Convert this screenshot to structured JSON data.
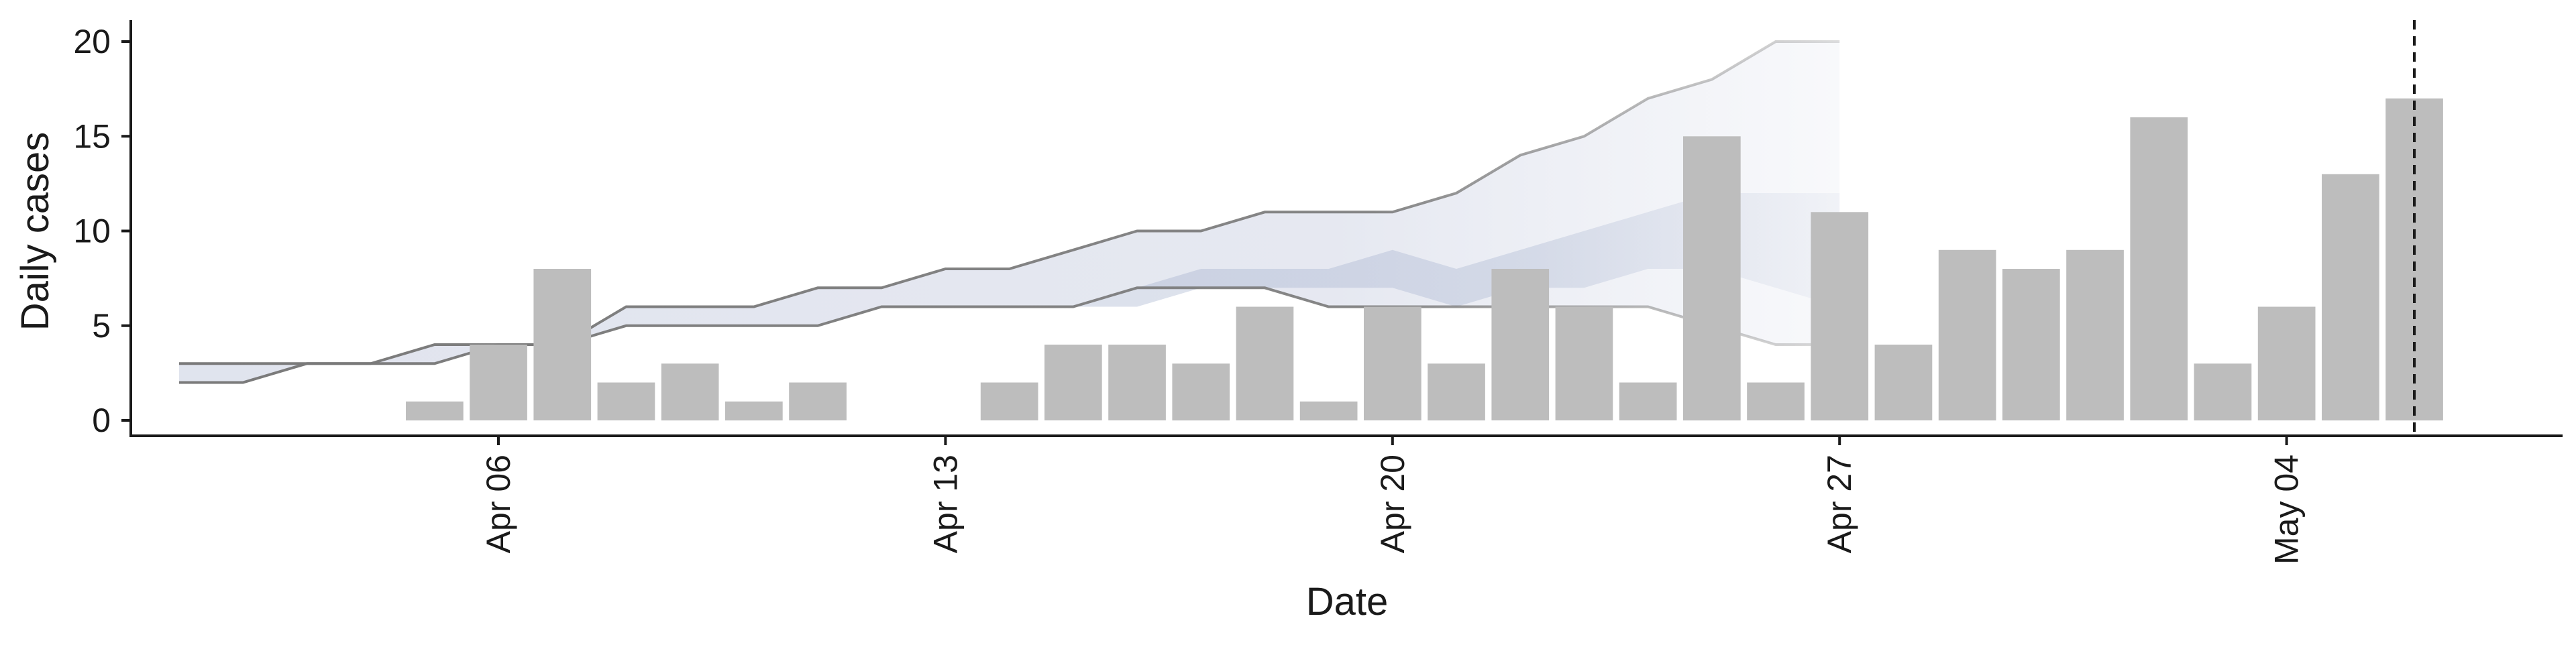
{
  "chart_data": {
    "type": "bar",
    "xlabel": "Date",
    "ylabel": "Daily cases",
    "ylim": [
      0,
      20
    ],
    "y_ticks": [
      0,
      5,
      10,
      15,
      20
    ],
    "x_ticks": [
      {
        "date": "2020-04-06",
        "label": "Apr 06"
      },
      {
        "date": "2020-04-13",
        "label": "Apr 13"
      },
      {
        "date": "2020-04-20",
        "label": "Apr 20"
      },
      {
        "date": "2020-04-27",
        "label": "Apr 27"
      },
      {
        "date": "2020-05-04",
        "label": "May 04"
      }
    ],
    "grid": false,
    "colors": {
      "bars": "#bdbdbd",
      "band": "#c7cde0",
      "band_line": "#7a7a7a",
      "inner_band": "#9aa8c8",
      "axis": "#1a1a1a",
      "reference_line": "#1a1a1a"
    },
    "reference_line": {
      "date": "2020-05-06",
      "style": "dashed"
    },
    "bars": {
      "x": [
        "2020-04-04",
        "2020-04-05",
        "2020-04-06",
        "2020-04-07",
        "2020-04-08",
        "2020-04-09",
        "2020-04-10",
        "2020-04-11",
        "2020-04-12",
        "2020-04-13",
        "2020-04-14",
        "2020-04-15",
        "2020-04-16",
        "2020-04-17",
        "2020-04-18",
        "2020-04-19",
        "2020-04-20",
        "2020-04-21",
        "2020-04-22",
        "2020-04-23",
        "2020-04-24",
        "2020-04-25",
        "2020-04-26",
        "2020-04-27",
        "2020-04-28",
        "2020-04-29",
        "2020-04-30",
        "2020-05-01",
        "2020-05-02",
        "2020-05-03",
        "2020-05-04",
        "2020-05-05",
        "2020-05-06"
      ],
      "values": [
        0,
        1,
        4,
        8,
        2,
        3,
        1,
        2,
        0,
        0,
        2,
        4,
        4,
        3,
        6,
        1,
        6,
        3,
        8,
        6,
        2,
        15,
        2,
        11,
        4,
        9,
        8,
        9,
        16,
        3,
        6,
        13,
        17
      ]
    },
    "band_outer": {
      "x": [
        "2020-04-01",
        "2020-04-02",
        "2020-04-03",
        "2020-04-04",
        "2020-04-05",
        "2020-04-06",
        "2020-04-07",
        "2020-04-08",
        "2020-04-09",
        "2020-04-10",
        "2020-04-11",
        "2020-04-12",
        "2020-04-13",
        "2020-04-14",
        "2020-04-15",
        "2020-04-16",
        "2020-04-17",
        "2020-04-18",
        "2020-04-19",
        "2020-04-20",
        "2020-04-21",
        "2020-04-22",
        "2020-04-23",
        "2020-04-24",
        "2020-04-25",
        "2020-04-26",
        "2020-04-27"
      ],
      "upper": [
        3,
        3,
        3,
        3,
        4,
        4,
        4,
        6,
        6,
        6,
        7,
        7,
        8,
        8,
        9,
        10,
        10,
        11,
        11,
        11,
        12,
        14,
        15,
        17,
        18,
        20,
        20
      ],
      "lower": [
        2,
        2,
        3,
        3,
        3,
        4,
        4,
        5,
        5,
        5,
        5,
        6,
        6,
        6,
        6,
        7,
        7,
        7,
        6,
        6,
        6,
        6,
        6,
        6,
        5,
        4,
        4
      ]
    },
    "band_inner": {
      "x": [
        "2020-04-15",
        "2020-04-16",
        "2020-04-17",
        "2020-04-18",
        "2020-04-19",
        "2020-04-20",
        "2020-04-21",
        "2020-04-22",
        "2020-04-23",
        "2020-04-24",
        "2020-04-25",
        "2020-04-26",
        "2020-04-27"
      ],
      "upper": [
        6,
        7,
        8,
        8,
        8,
        9,
        8,
        9,
        10,
        11,
        12,
        12,
        12
      ],
      "lower": [
        6,
        6,
        7,
        7,
        7,
        7,
        6,
        7,
        7,
        8,
        8,
        7,
        6
      ]
    }
  }
}
